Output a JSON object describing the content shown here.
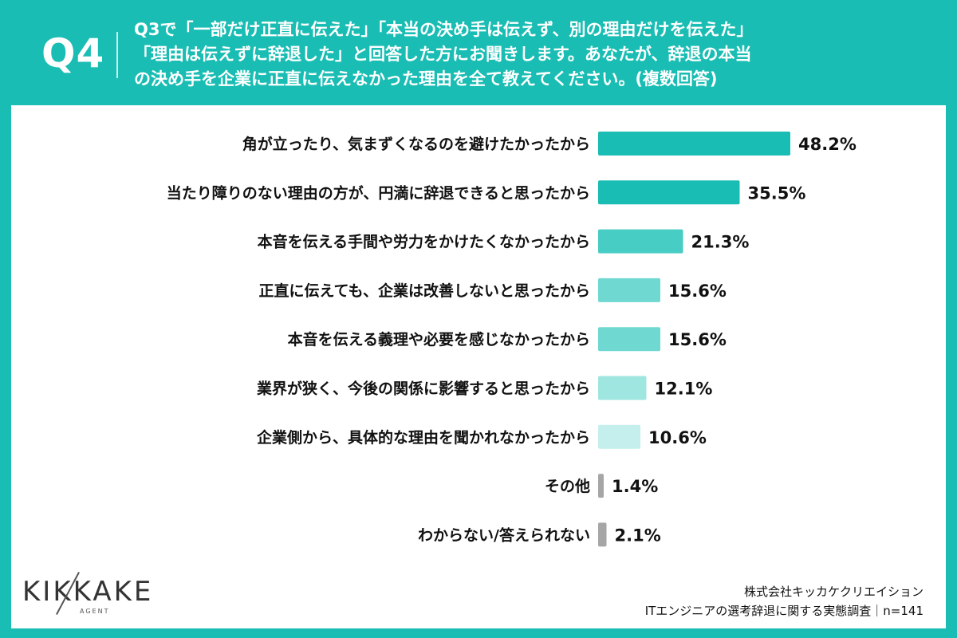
{
  "header": {
    "qnum": "Q4",
    "lines": [
      "Q3で「一部だけ正直に伝えた」「本当の決め手は伝えず、別の理由だけを伝えた」",
      "「理由は伝えずに辞退した」と回答した方にお聞きします。あなたが、辞退の本当",
      "の決め手を企業に正直に伝えなかった理由を全て教えてください。(複数回答)"
    ]
  },
  "chart_data": {
    "type": "bar",
    "orientation": "horizontal",
    "title": "",
    "xlabel": "",
    "ylabel": "",
    "xlim": [
      0,
      100
    ],
    "grid": false,
    "value_suffix": "%",
    "categories": [
      "角が立ったり、気まずくなるのを避けたかったから",
      "当たり障りのない理由の方が、円満に辞退できると思ったから",
      "本音を伝える手間や労力をかけたくなかったから",
      "正直に伝えても、企業は改善しないと思ったから",
      "本音を伝える義理や必要を感じなかったから",
      "業界が狭く、今後の関係に影響すると思ったから",
      "企業側から、具体的な理由を聞かれなかったから",
      "その他",
      "わからない/答えられない"
    ],
    "values": [
      48.2,
      35.5,
      21.3,
      15.6,
      15.6,
      12.1,
      10.6,
      1.4,
      2.1
    ],
    "value_labels": [
      "48.2%",
      "35.5%",
      "21.3%",
      "15.6%",
      "15.6%",
      "12.1%",
      "10.6%",
      "1.4%",
      "2.1%"
    ],
    "colors": [
      "#19BDB3",
      "#19BDB3",
      "#47CDC4",
      "#6FD8D1",
      "#6FD8D1",
      "#9FE5E0",
      "#C4EFEC",
      "#A6A6A6",
      "#A6A6A6"
    ]
  },
  "logo": {
    "text": "KIKKAKE",
    "sub": "AGENT"
  },
  "footer": {
    "company": "株式会社キッカケクリエイション",
    "survey": "ITエンジニアの選考辞退に関する実態調査｜n=141"
  }
}
